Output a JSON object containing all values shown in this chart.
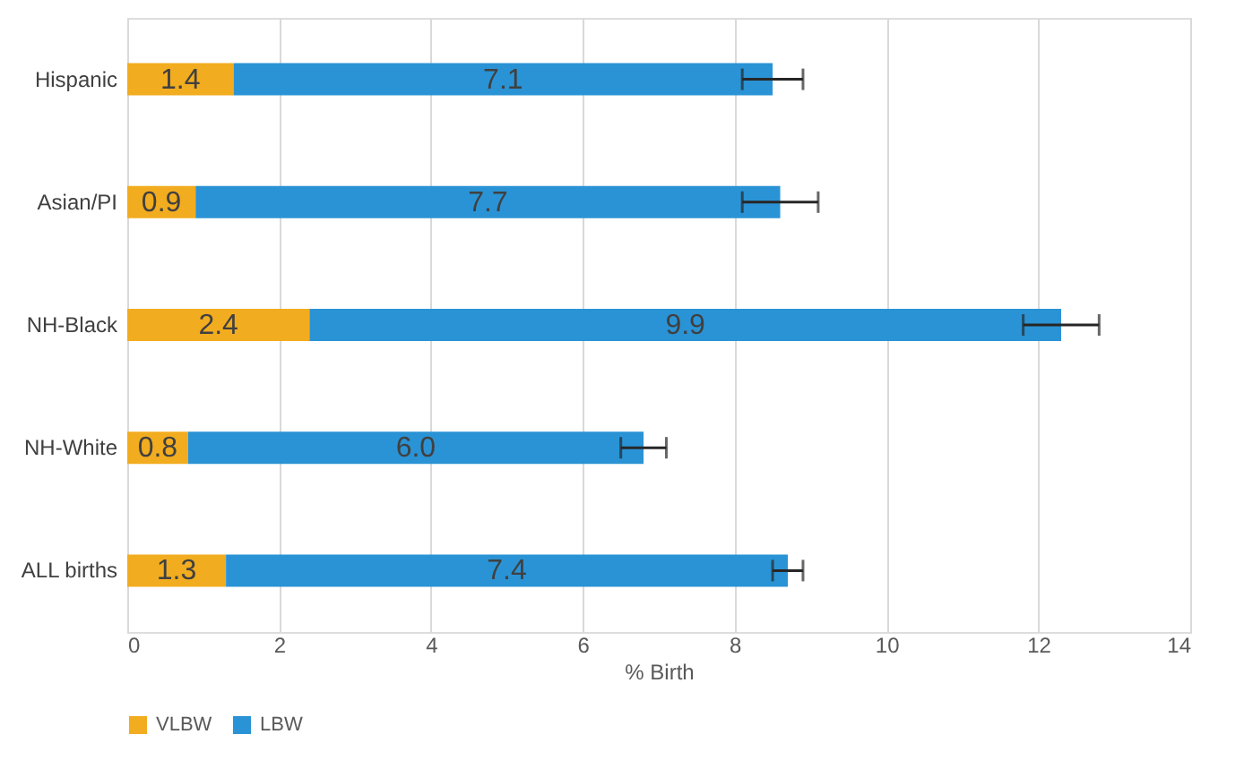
{
  "chart_data": {
    "type": "bar",
    "orientation": "horizontal",
    "stacked": true,
    "categories": [
      "Hispanic",
      "Asian/PI",
      "NH-Black",
      "NH-White",
      "ALL births"
    ],
    "series": [
      {
        "name": "VLBW",
        "color": "#f2ac1f",
        "values": [
          1.4,
          0.9,
          2.4,
          0.8,
          1.3
        ],
        "value_labels": [
          "1.4",
          "0.9",
          "2.4",
          "0.8",
          "1.3"
        ]
      },
      {
        "name": "LBW",
        "color": "#2a93d5",
        "values": [
          7.1,
          7.7,
          9.9,
          6.0,
          7.4
        ],
        "value_labels": [
          "7.1",
          "7.7",
          "9.9",
          "6.0",
          "7.4"
        ],
        "errors": [
          0.4,
          0.5,
          0.5,
          0.3,
          0.2
        ]
      }
    ],
    "xlabel": "% Birth",
    "xlim": [
      0,
      14
    ],
    "xticks": [
      0,
      2,
      4,
      6,
      8,
      10,
      12,
      14
    ],
    "grid": "x",
    "legend": "bottom"
  }
}
